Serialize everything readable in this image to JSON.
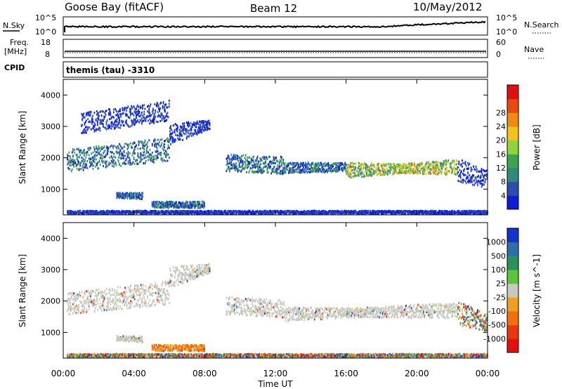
{
  "header": {
    "station": "Goose Bay (fitACF)",
    "beam": "Beam 12",
    "date": "10/May/2012"
  },
  "strip_sky": {
    "left_label": "N.Sky",
    "left_ticks": [
      "10^5",
      "10^0"
    ],
    "right_ticks": [
      "10^5",
      "10^0"
    ],
    "right_label": "N.Search"
  },
  "strip_freq": {
    "left_label": "Freq.",
    "left_unit": "[MHz]",
    "left_ticks": [
      "18",
      "8"
    ],
    "right_ticks": [
      "60",
      "0"
    ],
    "right_label": "Nave"
  },
  "cpid": {
    "label": "CPID",
    "text": "themis (tau) -3310"
  },
  "axes": {
    "xlabel": "Time UT",
    "x_ticks": [
      "00:00",
      "04:00",
      "08:00",
      "12:00",
      "16:00",
      "20:00",
      "00:00"
    ],
    "ylabel": "Slant Range [km]",
    "y_ticks": [
      "1000",
      "2000",
      "3000",
      "4000"
    ]
  },
  "chart_data": [
    {
      "type": "heatmap",
      "panel": "power",
      "x_range_hours": [
        0,
        24
      ],
      "y_range_km": [
        180,
        4500
      ],
      "colorbar": {
        "label": "Power [dB]",
        "ticks": [
          "4",
          "8",
          "12",
          "16",
          "20",
          "24",
          "28"
        ],
        "colors": [
          "#0f1bd6",
          "#2a4fb0",
          "#2f8a78",
          "#3da34d",
          "#8fd43a",
          "#f2c21f",
          "#f08a10",
          "#e84a10",
          "#e01010"
        ]
      },
      "bands": [
        {
          "t": [
            0.2,
            6.0
          ],
          "r0": [
            1700,
            2050
          ],
          "r1": [
            2100,
            2500
          ],
          "w": 300,
          "level": "mid"
        },
        {
          "t": [
            6.0,
            8.3
          ],
          "r0": [
            2500,
            3000
          ],
          "r1": [
            3000,
            3100
          ],
          "w": 180,
          "level": "low"
        },
        {
          "t": [
            1.0,
            6.0
          ],
          "r0": [
            2900,
            3300
          ],
          "r1": [
            3300,
            3700
          ],
          "w": 250,
          "level": "low"
        },
        {
          "t": [
            9.2,
            12.5
          ],
          "r0": [
            2000,
            1900
          ],
          "r1": [
            1700,
            1600
          ],
          "w": 260,
          "level": "mid"
        },
        {
          "t": [
            12.5,
            16.0
          ],
          "r0": [
            1650,
            1700
          ],
          "r1": [
            1700,
            1700
          ],
          "w": 280,
          "level": "mid"
        },
        {
          "t": [
            16.0,
            22.3
          ],
          "r0": [
            1700,
            1600
          ],
          "r1": [
            1500,
            1800
          ],
          "w": 300,
          "level": "high"
        },
        {
          "t": [
            22.3,
            24.0
          ],
          "r0": [
            1800,
            1400
          ],
          "r1": [
            1400,
            1200
          ],
          "w": 350,
          "level": "low"
        },
        {
          "t": [
            3.0,
            4.5
          ],
          "r0": [
            800,
            800
          ],
          "r1": [
            800,
            760
          ],
          "w": 160,
          "level": "mid"
        },
        {
          "t": [
            5.0,
            8.0
          ],
          "r0": [
            500,
            500
          ],
          "r1": [
            500,
            500
          ],
          "w": 200,
          "level": "mid"
        },
        {
          "t": [
            0.2,
            24.0
          ],
          "r0": [
            260,
            260
          ],
          "r1": [
            260,
            260
          ],
          "w": 100,
          "level": "low"
        }
      ]
    },
    {
      "type": "heatmap",
      "panel": "velocity",
      "x_range_hours": [
        0,
        24
      ],
      "y_range_km": [
        180,
        4500
      ],
      "colorbar": {
        "label": "Velocity [m s^-1]",
        "ticks": [
          "1000",
          "500",
          "100",
          "25",
          "-25",
          "-100",
          "-500",
          "-1000"
        ],
        "colors": [
          "#1433c8",
          "#2e6fa8",
          "#2f8f5a",
          "#5cc43a",
          "#c8c8c0",
          "#f0a020",
          "#f07010",
          "#e83810",
          "#e01010"
        ]
      },
      "bands": [
        {
          "t": [
            0.2,
            6.0
          ],
          "r0": [
            1700,
            2050
          ],
          "r1": [
            2100,
            2500
          ],
          "w": 300,
          "level": "grey"
        },
        {
          "t": [
            6.0,
            8.3
          ],
          "r0": [
            2500,
            3000
          ],
          "r1": [
            3000,
            3100
          ],
          "w": 180,
          "level": "grey"
        },
        {
          "t": [
            9.2,
            12.5
          ],
          "r0": [
            2000,
            1900
          ],
          "r1": [
            1700,
            1600
          ],
          "w": 260,
          "level": "grey"
        },
        {
          "t": [
            12.5,
            22.3
          ],
          "r0": [
            1650,
            1600
          ],
          "r1": [
            1500,
            1800
          ],
          "w": 300,
          "level": "grey"
        },
        {
          "t": [
            22.3,
            24.0
          ],
          "r0": [
            1800,
            1400
          ],
          "r1": [
            1400,
            1200
          ],
          "w": 350,
          "level": "mixed"
        },
        {
          "t": [
            3.0,
            4.5
          ],
          "r0": [
            800,
            800
          ],
          "r1": [
            800,
            760
          ],
          "w": 160,
          "level": "grey"
        },
        {
          "t": [
            5.0,
            8.0
          ],
          "r0": [
            500,
            500
          ],
          "r1": [
            500,
            500
          ],
          "w": 200,
          "level": "neg"
        },
        {
          "t": [
            0.2,
            24.0
          ],
          "r0": [
            260,
            260
          ],
          "r1": [
            260,
            260
          ],
          "w": 100,
          "level": "mixed"
        }
      ]
    }
  ]
}
